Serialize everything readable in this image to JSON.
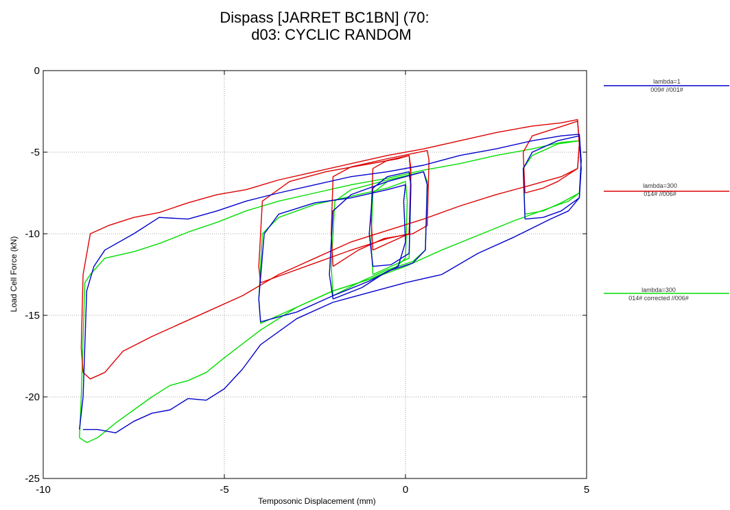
{
  "chart_data": {
    "type": "line",
    "title_line1": "Dispass [JARRET BC1BN] (70:",
    "title_line2": "d03: CYCLIC RANDOM",
    "xlabel": "Temposonic Displacement (mm)",
    "ylabel": "Load Cell Force (kN)",
    "xlim": [
      -10,
      5
    ],
    "ylim": [
      -25,
      0
    ],
    "xticks": [
      -10,
      -5,
      0,
      5
    ],
    "yticks": [
      0,
      -5,
      -10,
      -15,
      -20,
      -25
    ],
    "grid": true,
    "legend_position": "right",
    "series": [
      {
        "name": "lambda=1",
        "label_line2": "009# //001#",
        "color": "#0000cc",
        "loops": [
          [
            [
              -9.0,
              -22.0
            ],
            [
              -8.9,
              -20.0
            ],
            [
              -8.8,
              -13.5
            ],
            [
              -8.6,
              -12.0
            ],
            [
              -8.3,
              -11.0
            ],
            [
              -7.5,
              -10.0
            ],
            [
              -6.8,
              -9.0
            ],
            [
              -6.0,
              -9.1
            ],
            [
              -5.2,
              -8.6
            ],
            [
              -4.4,
              -8.0
            ],
            [
              -3.5,
              -7.5
            ],
            [
              -2.5,
              -7.0
            ],
            [
              -1.5,
              -6.5
            ],
            [
              -0.5,
              -6.2
            ],
            [
              0.5,
              -5.8
            ],
            [
              1.5,
              -5.2
            ],
            [
              2.5,
              -4.8
            ],
            [
              3.5,
              -4.3
            ],
            [
              4.3,
              -4.0
            ],
            [
              4.8,
              -3.9
            ],
            [
              4.85,
              -5.5
            ],
            [
              4.8,
              -7.8
            ],
            [
              4.5,
              -8.6
            ],
            [
              4.0,
              -9.1
            ],
            [
              3.0,
              -10.2
            ],
            [
              2.0,
              -11.2
            ],
            [
              1.0,
              -12.5
            ],
            [
              0.0,
              -13.0
            ],
            [
              -1.0,
              -13.6
            ],
            [
              -2.0,
              -14.2
            ],
            [
              -3.0,
              -15.2
            ],
            [
              -4.0,
              -16.8
            ],
            [
              -4.5,
              -18.3
            ],
            [
              -5.0,
              -19.5
            ],
            [
              -5.5,
              -20.2
            ],
            [
              -6.0,
              -20.1
            ],
            [
              -6.5,
              -20.8
            ],
            [
              -7.0,
              -21.0
            ],
            [
              -7.5,
              -21.5
            ],
            [
              -8.0,
              -22.2
            ],
            [
              -8.5,
              -22.0
            ],
            [
              -8.9,
              -22.0
            ]
          ],
          [
            [
              -4.0,
              -15.4
            ],
            [
              -4.05,
              -14.0
            ],
            [
              -3.9,
              -10.0
            ],
            [
              -3.5,
              -8.8
            ],
            [
              -2.5,
              -8.1
            ],
            [
              -1.5,
              -7.8
            ],
            [
              -0.5,
              -7.3
            ],
            [
              0.0,
              -7.0
            ],
            [
              -0.05,
              -8.0
            ],
            [
              0.0,
              -10.5
            ],
            [
              -0.2,
              -12.0
            ],
            [
              -1.0,
              -12.9
            ],
            [
              -2.0,
              -13.8
            ],
            [
              -3.0,
              -14.8
            ],
            [
              -4.0,
              -15.4
            ]
          ],
          [
            [
              -2.0,
              -14.0
            ],
            [
              -2.1,
              -12.5
            ],
            [
              -2.0,
              -8.6
            ],
            [
              -1.5,
              -7.6
            ],
            [
              -0.5,
              -6.8
            ],
            [
              0.5,
              -6.2
            ],
            [
              0.6,
              -7.0
            ],
            [
              0.55,
              -11.0
            ],
            [
              0.2,
              -11.8
            ],
            [
              -0.5,
              -12.3
            ],
            [
              -1.2,
              -13.3
            ],
            [
              -2.0,
              -14.0
            ]
          ],
          [
            [
              -0.9,
              -12.0
            ],
            [
              -1.0,
              -10.0
            ],
            [
              -0.9,
              -7.2
            ],
            [
              -0.5,
              -6.5
            ],
            [
              0.1,
              -6.2
            ],
            [
              0.15,
              -7.0
            ],
            [
              0.1,
              -11.2
            ],
            [
              -0.4,
              -11.9
            ],
            [
              -0.9,
              -12.0
            ]
          ],
          [
            [
              3.3,
              -9.1
            ],
            [
              3.25,
              -6.0
            ],
            [
              3.5,
              -5.0
            ],
            [
              4.2,
              -4.3
            ],
            [
              4.8,
              -4.0
            ],
            [
              4.85,
              -6.0
            ],
            [
              4.8,
              -7.8
            ],
            [
              4.3,
              -8.6
            ],
            [
              3.8,
              -9.0
            ],
            [
              3.3,
              -9.1
            ]
          ]
        ]
      },
      {
        "name": "lambda=300",
        "label_line2": "014# //006#",
        "color": "#dd0000",
        "loops": [
          [
            [
              -8.9,
              -18.5
            ],
            [
              -8.95,
              -17.0
            ],
            [
              -8.9,
              -12.5
            ],
            [
              -8.7,
              -10.0
            ],
            [
              -8.2,
              -9.5
            ],
            [
              -7.5,
              -9.0
            ],
            [
              -6.8,
              -8.7
            ],
            [
              -6.0,
              -8.1
            ],
            [
              -5.2,
              -7.6
            ],
            [
              -4.4,
              -7.3
            ],
            [
              -3.5,
              -6.7
            ],
            [
              -2.5,
              -6.2
            ],
            [
              -1.5,
              -5.7
            ],
            [
              -0.5,
              -5.2
            ],
            [
              0.5,
              -4.8
            ],
            [
              1.5,
              -4.3
            ],
            [
              2.5,
              -3.8
            ],
            [
              3.5,
              -3.4
            ],
            [
              4.3,
              -3.2
            ],
            [
              4.75,
              -3.0
            ],
            [
              4.8,
              -4.5
            ],
            [
              4.75,
              -6.0
            ],
            [
              4.3,
              -6.5
            ],
            [
              3.5,
              -7.0
            ],
            [
              2.5,
              -7.6
            ],
            [
              1.5,
              -8.3
            ],
            [
              0.5,
              -9.1
            ],
            [
              -0.5,
              -9.8
            ],
            [
              -1.5,
              -10.5
            ],
            [
              -2.5,
              -11.5
            ],
            [
              -3.5,
              -12.5
            ],
            [
              -4.5,
              -13.8
            ],
            [
              -5.5,
              -14.8
            ],
            [
              -6.5,
              -15.8
            ],
            [
              -7.0,
              -16.3
            ],
            [
              -7.8,
              -17.2
            ],
            [
              -8.3,
              -18.5
            ],
            [
              -8.7,
              -18.9
            ],
            [
              -8.9,
              -18.5
            ]
          ],
          [
            [
              -4.0,
              -13.0
            ],
            [
              -4.05,
              -12.0
            ],
            [
              -3.95,
              -8.0
            ],
            [
              -3.2,
              -6.8
            ],
            [
              -2.2,
              -6.2
            ],
            [
              -1.2,
              -5.8
            ],
            [
              -0.2,
              -5.4
            ],
            [
              0.1,
              -5.2
            ],
            [
              0.15,
              -6.5
            ],
            [
              0.1,
              -10.0
            ],
            [
              -0.5,
              -10.3
            ],
            [
              -1.5,
              -11.0
            ],
            [
              -2.5,
              -11.8
            ],
            [
              -3.5,
              -12.6
            ],
            [
              -4.0,
              -13.0
            ]
          ],
          [
            [
              -2.0,
              -12.0
            ],
            [
              -2.05,
              -10.0
            ],
            [
              -2.0,
              -6.5
            ],
            [
              -1.5,
              -5.9
            ],
            [
              -0.5,
              -5.4
            ],
            [
              0.6,
              -4.9
            ],
            [
              0.65,
              -5.5
            ],
            [
              0.6,
              -9.5
            ],
            [
              0.2,
              -10.0
            ],
            [
              -0.6,
              -10.3
            ],
            [
              -1.3,
              -11.0
            ],
            [
              -2.0,
              -12.0
            ]
          ],
          [
            [
              -0.9,
              -11.0
            ],
            [
              -0.95,
              -9.0
            ],
            [
              -0.9,
              -6.0
            ],
            [
              -0.5,
              -5.5
            ],
            [
              0.1,
              -5.2
            ],
            [
              0.15,
              -6.0
            ],
            [
              0.1,
              -10.0
            ],
            [
              -0.4,
              -10.5
            ],
            [
              -0.9,
              -11.0
            ]
          ],
          [
            [
              3.3,
              -7.5
            ],
            [
              3.25,
              -5.0
            ],
            [
              3.5,
              -4.0
            ],
            [
              4.2,
              -3.5
            ],
            [
              4.75,
              -3.1
            ],
            [
              4.8,
              -4.5
            ],
            [
              4.75,
              -6.0
            ],
            [
              4.2,
              -6.8
            ],
            [
              3.8,
              -7.2
            ],
            [
              3.3,
              -7.5
            ]
          ]
        ]
      },
      {
        "name": "lambda=300",
        "label_line2": "014#  corrected  //006#",
        "color": "#00dd00",
        "loops": [
          [
            [
              -9.0,
              -22.5
            ],
            [
              -8.95,
              -20.0
            ],
            [
              -8.85,
              -13.0
            ],
            [
              -8.7,
              -12.5
            ],
            [
              -8.3,
              -11.5
            ],
            [
              -7.5,
              -11.1
            ],
            [
              -6.8,
              -10.6
            ],
            [
              -6.0,
              -9.9
            ],
            [
              -5.2,
              -9.3
            ],
            [
              -4.4,
              -8.6
            ],
            [
              -3.5,
              -8.0
            ],
            [
              -2.5,
              -7.5
            ],
            [
              -1.5,
              -7.0
            ],
            [
              -0.5,
              -6.6
            ],
            [
              0.5,
              -6.1
            ],
            [
              1.5,
              -5.7
            ],
            [
              2.5,
              -5.2
            ],
            [
              3.5,
              -4.8
            ],
            [
              4.3,
              -4.4
            ],
            [
              4.8,
              -4.3
            ],
            [
              4.85,
              -5.5
            ],
            [
              4.8,
              -7.5
            ],
            [
              4.5,
              -8.0
            ],
            [
              4.0,
              -8.4
            ],
            [
              3.0,
              -9.2
            ],
            [
              2.0,
              -10.1
            ],
            [
              1.0,
              -11.0
            ],
            [
              0.0,
              -12.0
            ],
            [
              -1.0,
              -12.8
            ],
            [
              -2.0,
              -13.5
            ],
            [
              -3.0,
              -14.5
            ],
            [
              -4.0,
              -15.9
            ],
            [
              -5.0,
              -17.6
            ],
            [
              -5.5,
              -18.5
            ],
            [
              -6.0,
              -19.0
            ],
            [
              -6.5,
              -19.3
            ],
            [
              -7.0,
              -20.0
            ],
            [
              -7.5,
              -20.8
            ],
            [
              -8.0,
              -21.6
            ],
            [
              -8.5,
              -22.5
            ],
            [
              -8.8,
              -22.8
            ],
            [
              -9.0,
              -22.5
            ]
          ],
          [
            [
              -4.0,
              -15.5
            ],
            [
              -4.05,
              -14.0
            ],
            [
              -3.95,
              -10.0
            ],
            [
              -3.5,
              -9.0
            ],
            [
              -2.5,
              -8.2
            ],
            [
              -1.5,
              -7.7
            ],
            [
              -0.5,
              -7.2
            ],
            [
              0.0,
              -6.8
            ],
            [
              0.05,
              -8.0
            ],
            [
              0.0,
              -11.5
            ],
            [
              -0.3,
              -12.1
            ],
            [
              -1.0,
              -12.8
            ],
            [
              -2.0,
              -13.5
            ],
            [
              -3.0,
              -14.5
            ],
            [
              -4.0,
              -15.5
            ]
          ],
          [
            [
              -2.0,
              -13.8
            ],
            [
              -2.05,
              -12.0
            ],
            [
              -1.95,
              -8.0
            ],
            [
              -1.5,
              -7.3
            ],
            [
              -0.5,
              -6.7
            ],
            [
              0.5,
              -6.2
            ],
            [
              0.6,
              -6.8
            ],
            [
              0.55,
              -11.0
            ],
            [
              0.2,
              -11.7
            ],
            [
              -0.5,
              -12.2
            ],
            [
              -1.2,
              -12.9
            ],
            [
              -2.0,
              -13.8
            ]
          ],
          [
            [
              -0.9,
              -12.5
            ],
            [
              -0.95,
              -10.5
            ],
            [
              -0.9,
              -7.5
            ],
            [
              -0.5,
              -6.8
            ],
            [
              0.1,
              -6.4
            ],
            [
              0.15,
              -7.0
            ],
            [
              0.1,
              -11.5
            ],
            [
              -0.4,
              -12.0
            ],
            [
              -0.9,
              -12.5
            ]
          ],
          [
            [
              3.3,
              -8.8
            ],
            [
              3.25,
              -6.0
            ],
            [
              3.5,
              -5.2
            ],
            [
              4.2,
              -4.5
            ],
            [
              4.8,
              -4.3
            ],
            [
              4.85,
              -6.0
            ],
            [
              4.8,
              -7.5
            ],
            [
              4.3,
              -8.1
            ],
            [
              3.8,
              -8.6
            ],
            [
              3.3,
              -8.8
            ]
          ]
        ]
      }
    ]
  }
}
